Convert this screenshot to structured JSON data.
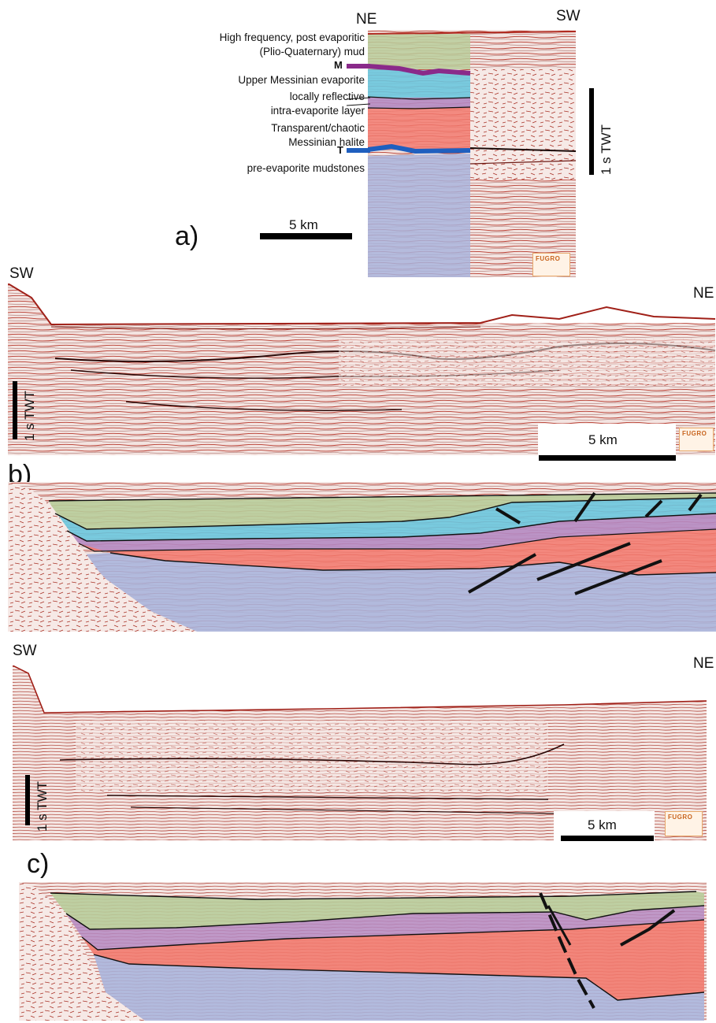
{
  "panel_a": {
    "letter": "a)",
    "dir_left": "NE",
    "dir_right": "SW",
    "legend": {
      "mud_line1": "High frequency, post evaporitic",
      "mud_line2": "(Plio-Quaternary) mud",
      "m_tag": "M",
      "upper_evaporite": "Upper Messinian evaporite",
      "reflective_line1": "locally reflective",
      "reflective_line2": "intra-evaporite layer",
      "halite_line1": "Transparent/chaotic",
      "halite_line2": "Messinian halite",
      "t_tag": "T",
      "pre_evaporite": "pre-evaporite mudstones"
    },
    "scale_bar": "5 km",
    "twt_bar": "1 s TWT",
    "logo": "FUGRO"
  },
  "panel_b": {
    "letter": "b)",
    "dir_left": "SW",
    "dir_right": "NE",
    "twt_bar": "1 s TWT",
    "scale_bar": "5 km",
    "logo": "FUGRO"
  },
  "panel_c": {
    "letter": "c)",
    "dir_left": "SW",
    "dir_right": "NE",
    "twt_bar": "1 s TWT",
    "scale_bar": "5 km",
    "logo": "FUGRO"
  },
  "colors": {
    "seismic_bg": "#f3e4e1",
    "seismic_line": "#b73a2e",
    "mud": "#b8cc9a",
    "upper_evaporite": "#6cc6de",
    "intra_layer": "#b58ac2",
    "halite": "#f27a6e",
    "pre_evaporite": "#a9b4dc",
    "horizon_m": "#8a2a8a",
    "horizon_t": "#1f5fbf",
    "fault": "#111111"
  }
}
